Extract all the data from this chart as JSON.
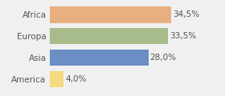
{
  "categories": [
    "America",
    "Asia",
    "Europa",
    "Africa"
  ],
  "values": [
    4.0,
    28.0,
    33.5,
    34.5
  ],
  "bar_colors": [
    "#f5d97f",
    "#6b8ec4",
    "#a8bb8a",
    "#e8b080"
  ],
  "labels": [
    "4,0%",
    "28,0%",
    "33,5%",
    "34,5%"
  ],
  "xlim": [
    0,
    42
  ],
  "background_color": "#f0f0f0",
  "bar_height": 0.75,
  "label_fontsize": 7.5,
  "tick_fontsize": 7.5,
  "label_color": "#555555",
  "tick_color": "#555555",
  "grid_color": "#ffffff",
  "grid_linewidth": 1.2
}
